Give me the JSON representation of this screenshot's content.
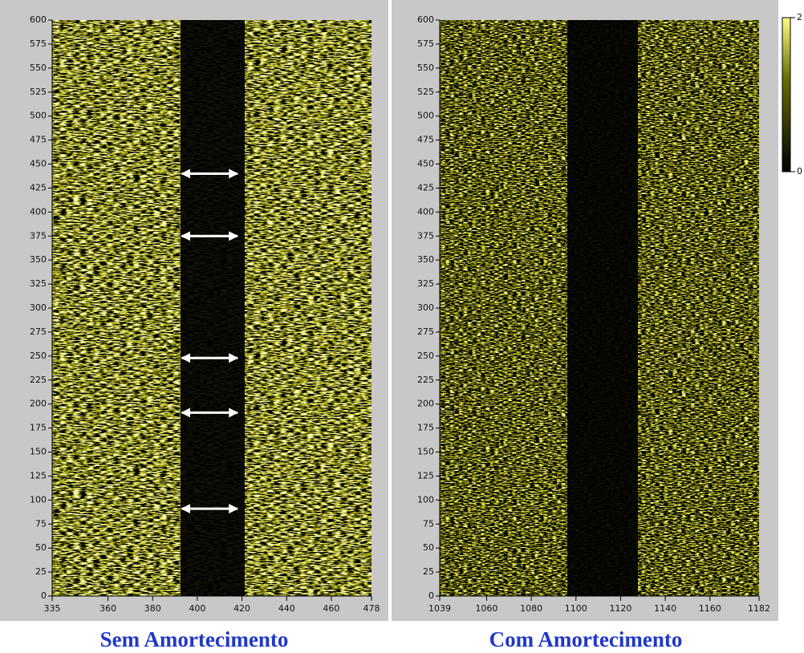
{
  "chart_data": [
    {
      "type": "heatmap",
      "title": "Sem Amortecimento",
      "xlim": [
        335,
        478
      ],
      "xticks": [
        335,
        360,
        380,
        400,
        420,
        440,
        460,
        478
      ],
      "ylim": [
        0,
        600
      ],
      "yticks": [
        0,
        25,
        50,
        75,
        100,
        125,
        150,
        175,
        200,
        225,
        250,
        275,
        300,
        325,
        350,
        375,
        400,
        425,
        450,
        475,
        500,
        525,
        550,
        575,
        600
      ],
      "arrows": [
        {
          "y": 440,
          "x": [
            393,
            418
          ]
        },
        {
          "y": 375,
          "x": [
            393,
            418
          ]
        },
        {
          "y": 248,
          "x": [
            393,
            418
          ]
        },
        {
          "y": 191,
          "x": [
            393,
            418
          ]
        },
        {
          "y": 91,
          "x": [
            393,
            418
          ]
        }
      ]
    },
    {
      "type": "heatmap",
      "title": "Com Amortecimento",
      "xlim": [
        1039,
        1182
      ],
      "xticks": [
        1039,
        1060,
        1080,
        1100,
        1120,
        1140,
        1160,
        1182
      ],
      "ylim": [
        0,
        600
      ],
      "yticks": [
        0,
        25,
        50,
        75,
        100,
        125,
        150,
        175,
        200,
        225,
        250,
        275,
        300,
        325,
        350,
        375,
        400,
        425,
        450,
        475,
        500,
        525,
        550,
        575,
        600
      ]
    }
  ],
  "colorbar": {
    "lim": [
      0,
      2
    ],
    "ticks": [
      0,
      2
    ]
  }
}
